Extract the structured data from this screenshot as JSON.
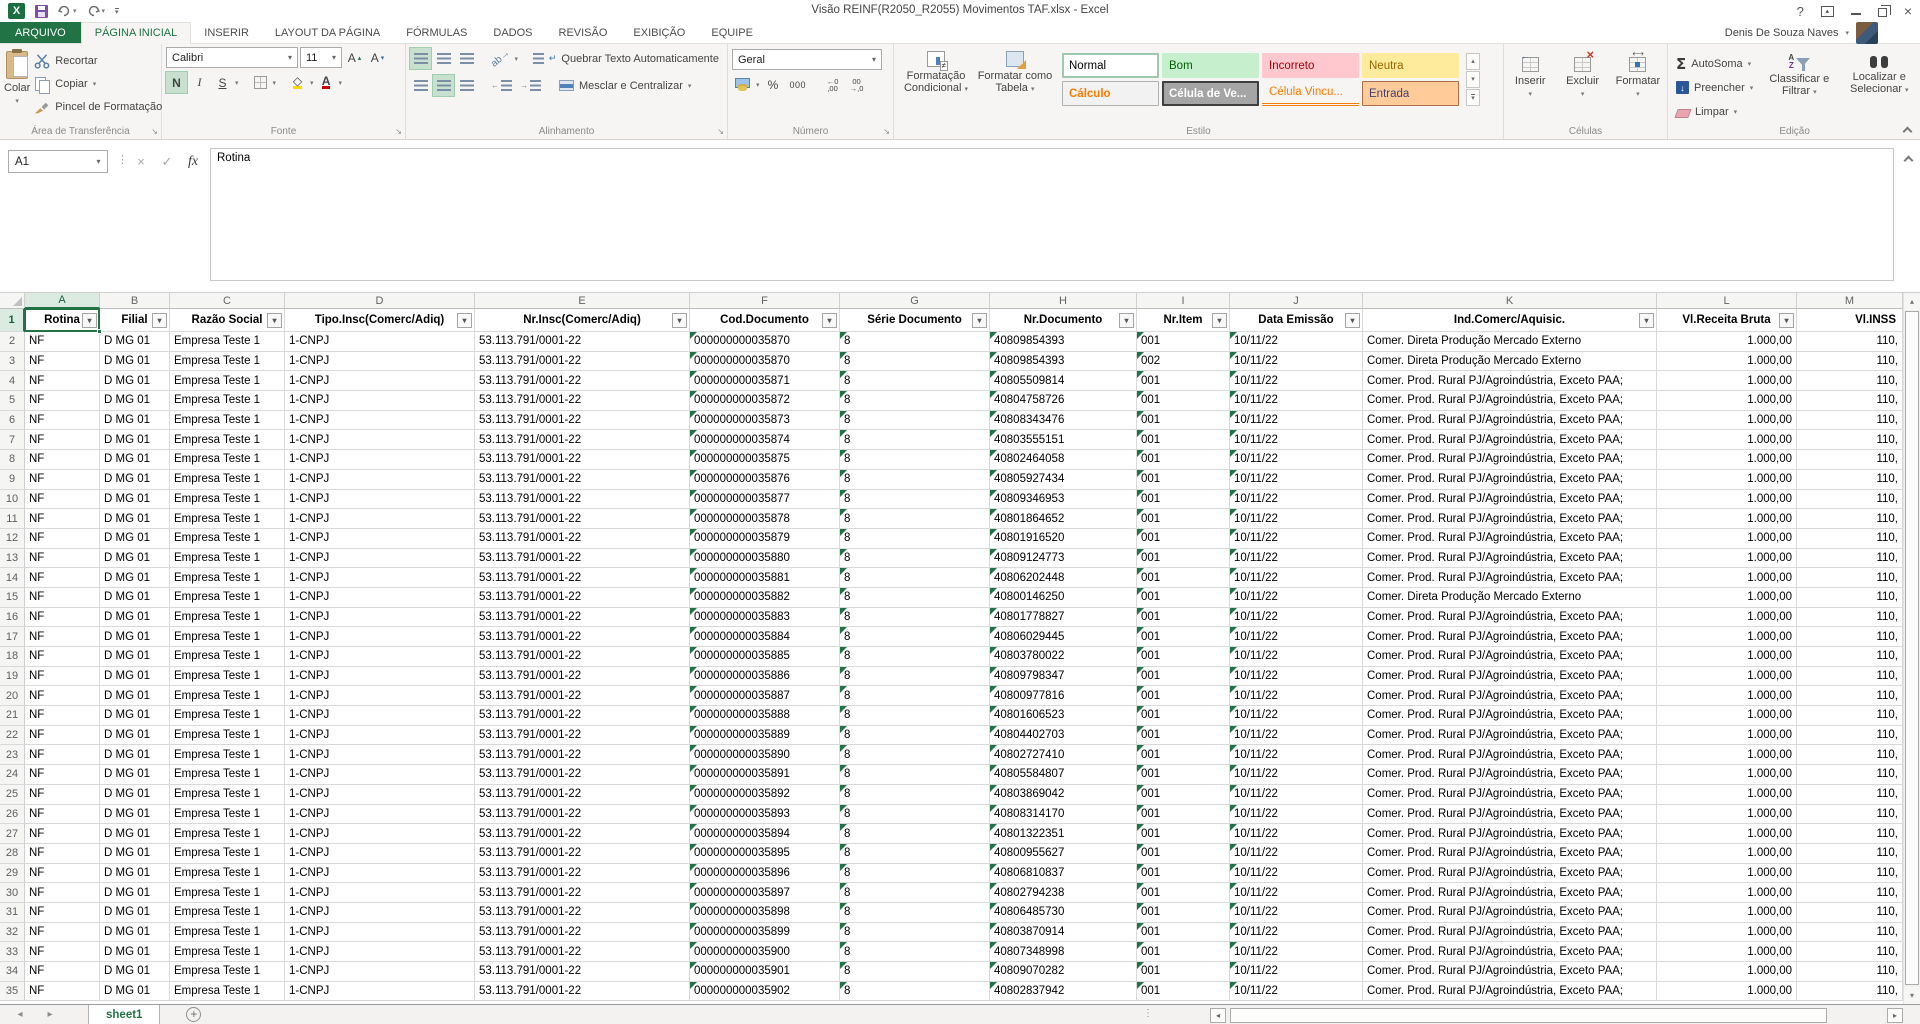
{
  "titlebar": {
    "title": "Visão REINF(R2050_R2055) Movimentos TAF.xlsx - Excel",
    "user": "Denis De Souza Naves"
  },
  "tabs": {
    "file": "ARQUIVO",
    "items": [
      "PÁGINA INICIAL",
      "INSERIR",
      "LAYOUT DA PÁGINA",
      "FÓRMULAS",
      "DADOS",
      "REVISÃO",
      "EXIBIÇÃO",
      "EQUIPE"
    ],
    "active": "PÁGINA INICIAL"
  },
  "ribbon": {
    "clipboard": {
      "paste": "Colar",
      "cut": "Recortar",
      "copy": "Copiar",
      "painter": "Pincel de Formatação",
      "label": "Área de Transferência"
    },
    "font": {
      "family": "Calibri",
      "size": "11",
      "bold": "N",
      "italic": "I",
      "underline": "S",
      "label": "Fonte"
    },
    "alignment": {
      "wrap": "Quebrar Texto Automaticamente",
      "merge": "Mesclar e Centralizar",
      "label": "Alinhamento"
    },
    "number": {
      "format": "Geral",
      "percent": "%",
      "zeros": "000",
      "label": "Número"
    },
    "styles": {
      "cond": "Formatação Condicional",
      "table": "Formatar como Tabela",
      "label": "Estilo",
      "gallery": [
        {
          "name": "Normal",
          "bg": "#ffffff",
          "fg": "#000000",
          "border": "#9fc9ae",
          "border_w": 2
        },
        {
          "name": "Bom",
          "bg": "#c6efce",
          "fg": "#006100"
        },
        {
          "name": "Incorreto",
          "bg": "#ffc7ce",
          "fg": "#9c0006"
        },
        {
          "name": "Neutra",
          "bg": "#ffeb9c",
          "fg": "#9c6500"
        },
        {
          "name": "Cálculo",
          "bg": "#f2f2f2",
          "fg": "#fa7d00",
          "border": "#b2b2b2",
          "border_w": 1,
          "bold": true
        },
        {
          "name": "Célula de Ve...",
          "bg": "#a5a5a5",
          "fg": "#ffffff",
          "border": "#3f3f3f",
          "border_w": 2,
          "bold": true
        },
        {
          "name": "Célula Vincu...",
          "bg": "transparent",
          "fg": "#fa7d00",
          "double_underline": true
        },
        {
          "name": "Entrada",
          "bg": "#ffcc99",
          "fg": "#3f3f76",
          "border": "#ad6f49",
          "border_w": 1
        }
      ]
    },
    "cells": {
      "insert": "Inserir",
      "delete": "Excluir",
      "format": "Formatar",
      "label": "Células"
    },
    "editing": {
      "autosum": "AutoSoma",
      "fill": "Preencher",
      "clear": "Limpar",
      "sort": "Classificar e Filtrar",
      "find": "Localizar e Selecionar",
      "label": "Edição"
    }
  },
  "formula_bar": {
    "name_box": "A1",
    "content": "Rotina"
  },
  "grid": {
    "selected_cell": "A1",
    "col_letters": [
      "A",
      "B",
      "C",
      "D",
      "E",
      "F",
      "G",
      "H",
      "I",
      "J",
      "K",
      "L",
      "M"
    ],
    "columns": [
      {
        "letter": "A",
        "label": "Rotina",
        "filter": true
      },
      {
        "letter": "B",
        "label": "Filial",
        "filter": true
      },
      {
        "letter": "C",
        "label": "Razão Social",
        "filter": true
      },
      {
        "letter": "D",
        "label": "Tipo.Insc(Comerc/Adiq)",
        "filter": true
      },
      {
        "letter": "E",
        "label": "Nr.Insc(Comerc/Adiq)",
        "filter": true
      },
      {
        "letter": "F",
        "label": "Cod.Documento",
        "filter": true
      },
      {
        "letter": "G",
        "label": "Série Documento",
        "filter": true
      },
      {
        "letter": "H",
        "label": "Nr.Documento",
        "filter": true
      },
      {
        "letter": "I",
        "label": "Nr.Item",
        "filter": true
      },
      {
        "letter": "J",
        "label": "Data Emissão",
        "filter": true
      },
      {
        "letter": "K",
        "label": "Ind.Comerc/Aquisic.",
        "filter": true
      },
      {
        "letter": "L",
        "label": "Vl.Receita Bruta",
        "filter": true
      },
      {
        "letter": "M",
        "label": "Vl.INSS",
        "filter": false,
        "halign": "right"
      }
    ],
    "row_defaults": {
      "rotina": "NF",
      "filial": "D MG 01",
      "razao_social": "Empresa Teste 1",
      "tipo_insc": "1-CNPJ",
      "nr_insc": "53.113.791/0001-22",
      "serie": "8",
      "data_emissao": "10/11/22",
      "receita": "1.000,00",
      "inss": "110,"
    },
    "ind_externo": "Comer. Direta Produção Mercado Externo",
    "ind_paa": "Comer. Prod. Rural PJ/Agroindústria, Exceto PAA;",
    "rows": [
      {
        "cod": "000000000035870",
        "doc": "40809854393",
        "item": "001",
        "ind": "Comer. Direta Produção Mercado Externo"
      },
      {
        "cod": "000000000035870",
        "doc": "40809854393",
        "item": "002",
        "ind": "Comer. Direta Produção Mercado Externo"
      },
      {
        "cod": "000000000035871",
        "doc": "40805509814",
        "item": "001",
        "ind": "Comer. Prod. Rural PJ/Agroindústria, Exceto PAA;"
      },
      {
        "cod": "000000000035872",
        "doc": "40804758726",
        "item": "001",
        "ind": "Comer. Prod. Rural PJ/Agroindústria, Exceto PAA;"
      },
      {
        "cod": "000000000035873",
        "doc": "40808343476",
        "item": "001",
        "ind": "Comer. Prod. Rural PJ/Agroindústria, Exceto PAA;"
      },
      {
        "cod": "000000000035874",
        "doc": "40803555151",
        "item": "001",
        "ind": "Comer. Prod. Rural PJ/Agroindústria, Exceto PAA;"
      },
      {
        "cod": "000000000035875",
        "doc": "40802464058",
        "item": "001",
        "ind": "Comer. Prod. Rural PJ/Agroindústria, Exceto PAA;"
      },
      {
        "cod": "000000000035876",
        "doc": "40805927434",
        "item": "001",
        "ind": "Comer. Prod. Rural PJ/Agroindústria, Exceto PAA;"
      },
      {
        "cod": "000000000035877",
        "doc": "40809346953",
        "item": "001",
        "ind": "Comer. Prod. Rural PJ/Agroindústria, Exceto PAA;"
      },
      {
        "cod": "000000000035878",
        "doc": "40801864652",
        "item": "001",
        "ind": "Comer. Prod. Rural PJ/Agroindústria, Exceto PAA;"
      },
      {
        "cod": "000000000035879",
        "doc": "40801916520",
        "item": "001",
        "ind": "Comer. Prod. Rural PJ/Agroindústria, Exceto PAA;"
      },
      {
        "cod": "000000000035880",
        "doc": "40809124773",
        "item": "001",
        "ind": "Comer. Prod. Rural PJ/Agroindústria, Exceto PAA;"
      },
      {
        "cod": "000000000035881",
        "doc": "40806202448",
        "item": "001",
        "ind": "Comer. Prod. Rural PJ/Agroindústria, Exceto PAA;"
      },
      {
        "cod": "000000000035882",
        "doc": "40800146250",
        "item": "001",
        "ind": "Comer. Direta Produção Mercado Externo"
      },
      {
        "cod": "000000000035883",
        "doc": "40801778827",
        "item": "001",
        "ind": "Comer. Prod. Rural PJ/Agroindústria, Exceto PAA;"
      },
      {
        "cod": "000000000035884",
        "doc": "40806029445",
        "item": "001",
        "ind": "Comer. Prod. Rural PJ/Agroindústria, Exceto PAA;"
      },
      {
        "cod": "000000000035885",
        "doc": "40803780022",
        "item": "001",
        "ind": "Comer. Prod. Rural PJ/Agroindústria, Exceto PAA;"
      },
      {
        "cod": "000000000035886",
        "doc": "40809798347",
        "item": "001",
        "ind": "Comer. Prod. Rural PJ/Agroindústria, Exceto PAA;"
      },
      {
        "cod": "000000000035887",
        "doc": "40800977816",
        "item": "001",
        "ind": "Comer. Prod. Rural PJ/Agroindústria, Exceto PAA;"
      },
      {
        "cod": "000000000035888",
        "doc": "40801606523",
        "item": "001",
        "ind": "Comer. Prod. Rural PJ/Agroindústria, Exceto PAA;"
      },
      {
        "cod": "000000000035889",
        "doc": "40804402703",
        "item": "001",
        "ind": "Comer. Prod. Rural PJ/Agroindústria, Exceto PAA;"
      },
      {
        "cod": "000000000035890",
        "doc": "40802727410",
        "item": "001",
        "ind": "Comer. Prod. Rural PJ/Agroindústria, Exceto PAA;"
      },
      {
        "cod": "000000000035891",
        "doc": "40805584807",
        "item": "001",
        "ind": "Comer. Prod. Rural PJ/Agroindústria, Exceto PAA;"
      },
      {
        "cod": "000000000035892",
        "doc": "40803869042",
        "item": "001",
        "ind": "Comer. Prod. Rural PJ/Agroindústria, Exceto PAA;"
      },
      {
        "cod": "000000000035893",
        "doc": "40808314170",
        "item": "001",
        "ind": "Comer. Prod. Rural PJ/Agroindústria, Exceto PAA;"
      },
      {
        "cod": "000000000035894",
        "doc": "40801322351",
        "item": "001",
        "ind": "Comer. Prod. Rural PJ/Agroindústria, Exceto PAA;"
      },
      {
        "cod": "000000000035895",
        "doc": "40800955627",
        "item": "001",
        "ind": "Comer. Prod. Rural PJ/Agroindústria, Exceto PAA;"
      },
      {
        "cod": "000000000035896",
        "doc": "40806810837",
        "item": "001",
        "ind": "Comer. Prod. Rural PJ/Agroindústria, Exceto PAA;"
      },
      {
        "cod": "000000000035897",
        "doc": "40802794238",
        "item": "001",
        "ind": "Comer. Prod. Rural PJ/Agroindústria, Exceto PAA;"
      },
      {
        "cod": "000000000035898",
        "doc": "40806485730",
        "item": "001",
        "ind": "Comer. Prod. Rural PJ/Agroindústria, Exceto PAA;"
      },
      {
        "cod": "000000000035899",
        "doc": "40803870914",
        "item": "001",
        "ind": "Comer. Prod. Rural PJ/Agroindústria, Exceto PAA;"
      },
      {
        "cod": "000000000035900",
        "doc": "40807348998",
        "item": "001",
        "ind": "Comer. Prod. Rural PJ/Agroindústria, Exceto PAA;"
      },
      {
        "cod": "000000000035901",
        "doc": "40809070282",
        "item": "001",
        "ind": "Comer. Prod. Rural PJ/Agroindústria, Exceto PAA;"
      },
      {
        "cod": "000000000035902",
        "doc": "40802837942",
        "item": "001",
        "ind": "Comer. Prod. Rural PJ/Agroindústria, Exceto PAA;"
      }
    ]
  },
  "sheet_bar": {
    "tab": "sheet1"
  }
}
